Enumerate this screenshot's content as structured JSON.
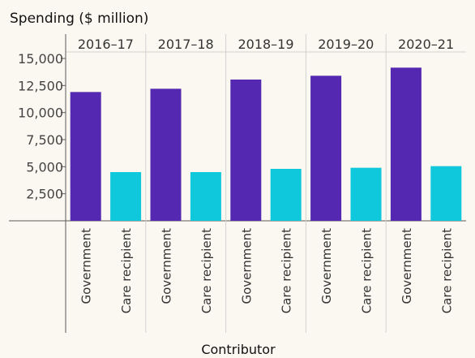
{
  "chart_data": {
    "type": "bar",
    "title": "Spending ($ million)",
    "xlabel": "Contributor",
    "ylabel": "",
    "ylim": [
      0,
      15000
    ],
    "yticks": [
      2500,
      5000,
      7500,
      10000,
      12500,
      15000
    ],
    "ytick_labels": [
      "2,500",
      "5,000",
      "7,500",
      "10,000",
      "12,500",
      "15,000"
    ],
    "categories": [
      "Government",
      "Care recipient"
    ],
    "panels": [
      {
        "label": "2016–17",
        "values": [
          11900,
          4500
        ]
      },
      {
        "label": "2017–18",
        "values": [
          12200,
          4500
        ]
      },
      {
        "label": "2018–19",
        "values": [
          13050,
          4800
        ]
      },
      {
        "label": "2019–20",
        "values": [
          13400,
          4900
        ]
      },
      {
        "label": "2020–21",
        "values": [
          14150,
          5050
        ]
      }
    ],
    "colors": {
      "Government": "#5428b0",
      "Care recipient": "#0fc8dc"
    },
    "grid": false,
    "legend": "none"
  }
}
